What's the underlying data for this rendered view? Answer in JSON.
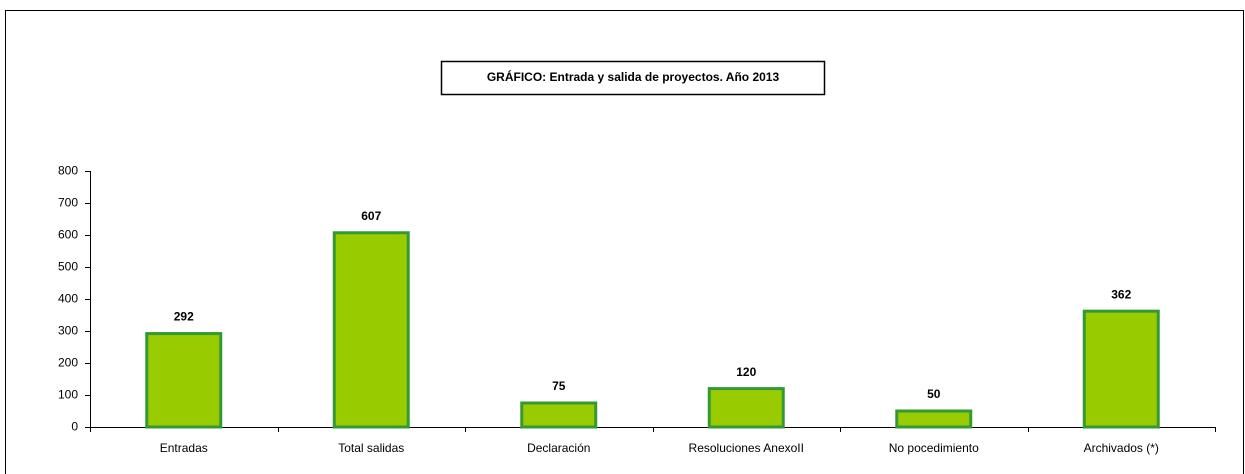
{
  "chart_data": {
    "type": "bar",
    "title": "GRÁFICO: Entrada y salida de proyectos. Año 2013",
    "categories": [
      "Entradas",
      "Total salidas",
      "Declaración",
      "Resoluciones AnexoII",
      "No pocedimiento",
      "Archivados (*)"
    ],
    "values": [
      292,
      607,
      75,
      120,
      50,
      362
    ],
    "color": "#99cc00",
    "edge_color": "#339933",
    "ylim": [
      0,
      800
    ],
    "yticks": [
      0,
      100,
      200,
      300,
      400,
      500,
      600,
      700,
      800
    ],
    "grid": false
  }
}
